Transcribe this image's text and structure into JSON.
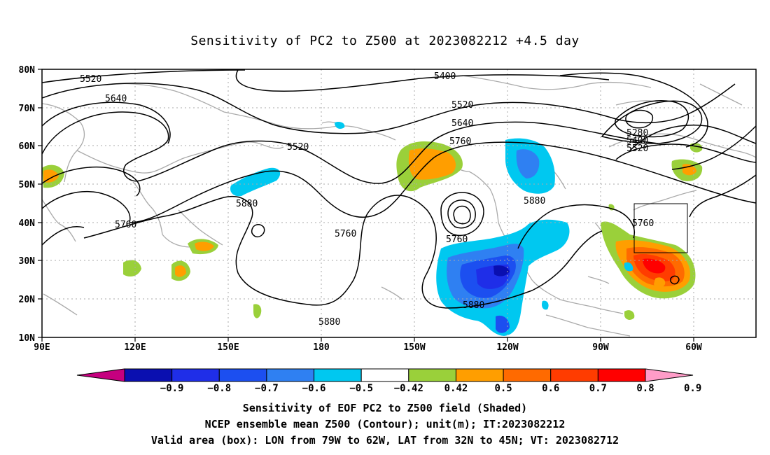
{
  "title": "Sensitivity of PC2 to Z500 at 2023082212 +4.5 day",
  "map": {
    "lat_labels": [
      "80N",
      "70N",
      "60N",
      "50N",
      "40N",
      "30N",
      "20N",
      "10N"
    ],
    "lon_labels": [
      "90E",
      "120E",
      "150E",
      "180",
      "150W",
      "120W",
      "90W",
      "60W"
    ],
    "contour_labels": [
      {
        "text": "5520",
        "key": "c1"
      },
      {
        "text": "5640",
        "key": "c2"
      },
      {
        "text": "5400",
        "key": "c3"
      },
      {
        "text": "5520",
        "key": "c4"
      },
      {
        "text": "5520",
        "key": "c5"
      },
      {
        "text": "5640",
        "key": "c6"
      },
      {
        "text": "5760",
        "key": "c7"
      },
      {
        "text": "5280",
        "key": "c8"
      },
      {
        "text": "5400",
        "key": "c9"
      },
      {
        "text": "5520",
        "key": "c10"
      },
      {
        "text": "5880",
        "key": "c11"
      },
      {
        "text": "5760",
        "key": "c12"
      },
      {
        "text": "5760",
        "key": "c13"
      },
      {
        "text": "5760",
        "key": "c14"
      },
      {
        "text": "5880",
        "key": "c15"
      },
      {
        "text": "5760",
        "key": "c16"
      },
      {
        "text": "5880",
        "key": "c17"
      },
      {
        "text": "5880",
        "key": "c18"
      }
    ],
    "valid_box": {
      "lon_from": "79W",
      "lon_to": "62W",
      "lat_from": "32N",
      "lat_to": "45N"
    }
  },
  "colorbar": {
    "labels": [
      "-0.9",
      "-0.8",
      "-0.7",
      "-0.6",
      "-0.5",
      "-0.42",
      "0.42",
      "0.5",
      "0.6",
      "0.7",
      "0.8",
      "0.9"
    ],
    "colors": [
      "#c6007f",
      "#0a0fb0",
      "#1f2ee8",
      "#1c4ff0",
      "#2f80f2",
      "#00c8f0",
      "#ffffff",
      "#9ad03a",
      "#ff9e00",
      "#ff6a00",
      "#ff3c00",
      "#ff0000",
      "#ff9cc8"
    ]
  },
  "captions": {
    "line1": "Sensitivity of EOF PC2 to Z500 field (Shaded)",
    "line2": "NCEP ensemble mean Z500 (Contour); unit(m); IT:2023082212",
    "line3": "Valid area (box): LON from 79W to 62W, LAT from 32N to 45N; VT: 2023082712"
  }
}
